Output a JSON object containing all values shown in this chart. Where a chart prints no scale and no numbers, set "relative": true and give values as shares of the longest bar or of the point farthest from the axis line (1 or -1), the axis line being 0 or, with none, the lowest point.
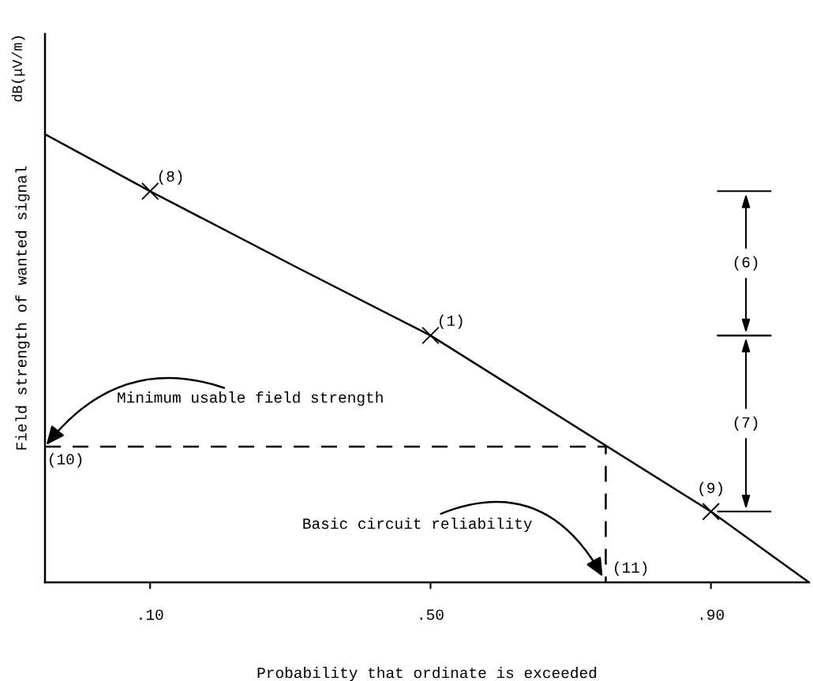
{
  "chart_data": {
    "type": "line",
    "relative": true,
    "xlabel": "Probability that ordinate is exceeded",
    "ylabel": "Field strength of wanted signal",
    "xlim": [
      -0.05,
      1.04
    ],
    "xticks": [
      {
        "value": 0.1,
        "label": ".10"
      },
      {
        "value": 0.5,
        "label": ".50"
      },
      {
        "value": 0.9,
        "label": ".90"
      }
    ],
    "grid": false,
    "legend": false,
    "series": [
      {
        "color": "#000000",
        "line_style": "solid",
        "x": [
          -0.05,
          0.1,
          0.308,
          0.5,
          0.9,
          1.04
        ],
        "values": [
          1,
          0.873,
          0.704,
          0.551,
          0.158,
          0
        ]
      },
      {
        "type": "scatter",
        "color": "#000000",
        "marker": "cross",
        "x": [
          0.1,
          0.5,
          0.9
        ],
        "values": [
          0.873,
          0.551,
          0.158
        ]
      },
      {
        "color": "#000000",
        "line_style": "dashed",
        "x": [
          -0.05,
          0.75,
          0.75
        ],
        "values": [
          0.303,
          0.303,
          0
        ]
      }
    ],
    "annotations": [
      "dB(μV/m)",
      "Minimum usable field strength",
      {
        "text": "(10)",
        "x": -0.05,
        "y": 0.303
      },
      "Basic circuit reliability",
      {
        "text": "(11)",
        "x": 0.75,
        "y": 0
      },
      {
        "text": "(8)",
        "x": 0.1,
        "y": 0.873
      },
      {
        "text": "(1)",
        "x": 0.5,
        "y": 0.551
      },
      {
        "text": "(9)",
        "x": 0.9,
        "y": 0.158
      },
      "(6)",
      "(7)"
    ]
  }
}
